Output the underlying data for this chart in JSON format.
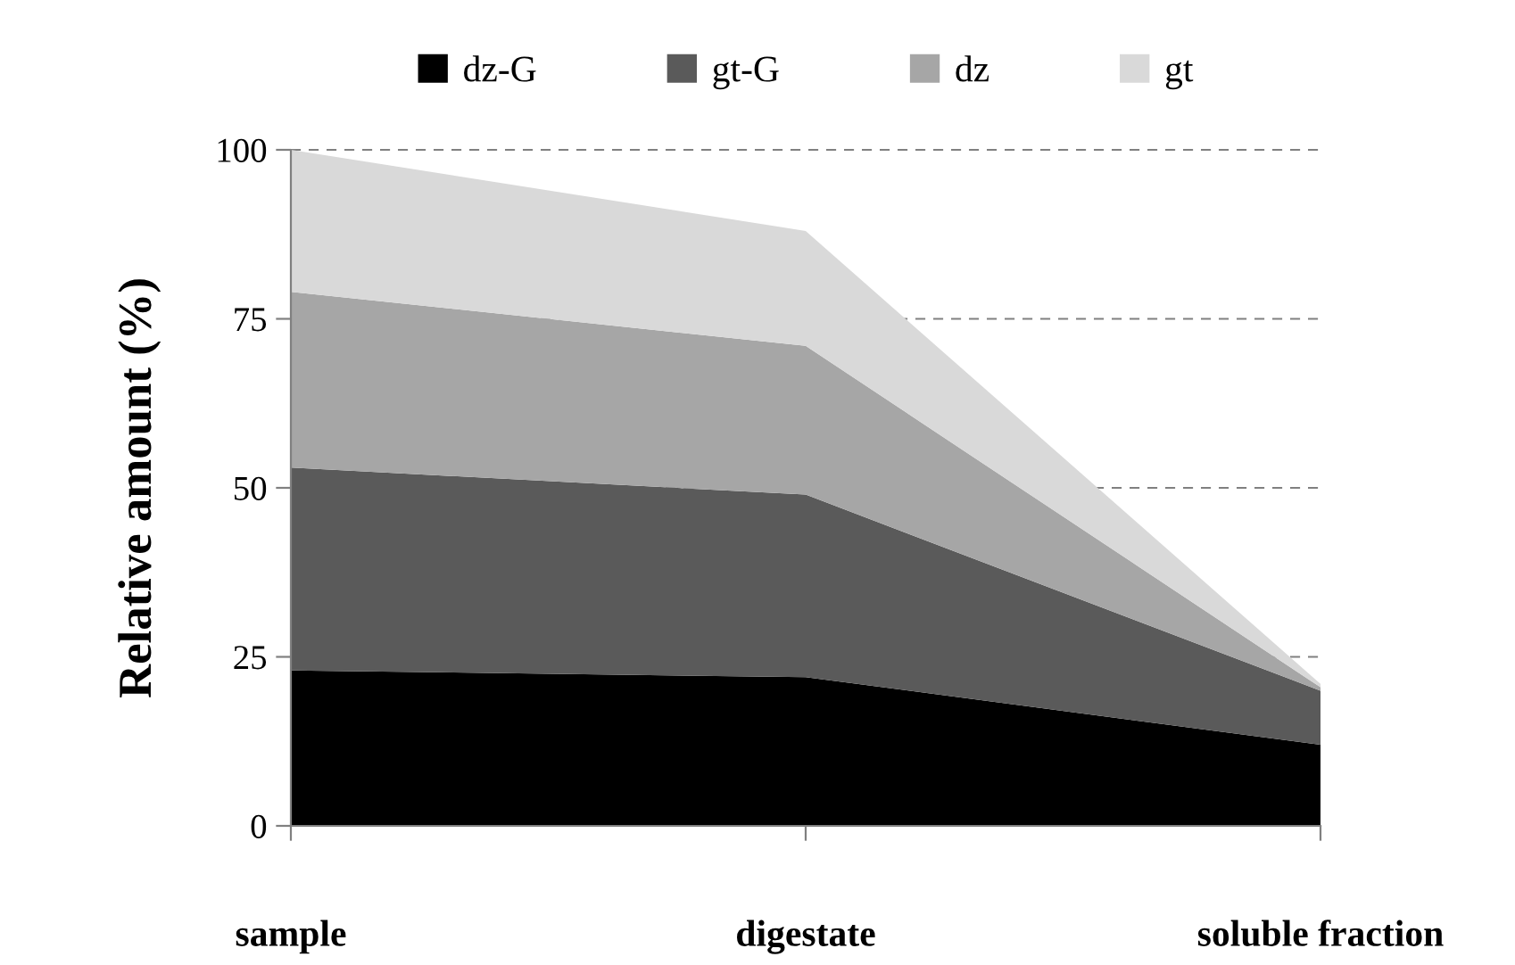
{
  "chart_data": {
    "type": "area",
    "stacked": true,
    "ylabel": "Relative amount (%)",
    "categories": [
      "sample",
      "digestate",
      "soluble fraction"
    ],
    "series": [
      {
        "name": "dz-G",
        "color": "#000000",
        "values": [
          23,
          22,
          12
        ]
      },
      {
        "name": "gt-G",
        "color": "#5a5a5a",
        "values": [
          30,
          27,
          8
        ]
      },
      {
        "name": "dz",
        "color": "#a6a6a6",
        "values": [
          26,
          22,
          0.5
        ]
      },
      {
        "name": "gt",
        "color": "#d9d9d9",
        "values": [
          21,
          17,
          0.5
        ]
      }
    ],
    "ylim": [
      0,
      100
    ],
    "yticks": [
      0,
      25,
      50,
      75,
      100
    ],
    "grid": "y",
    "legend": "top"
  }
}
